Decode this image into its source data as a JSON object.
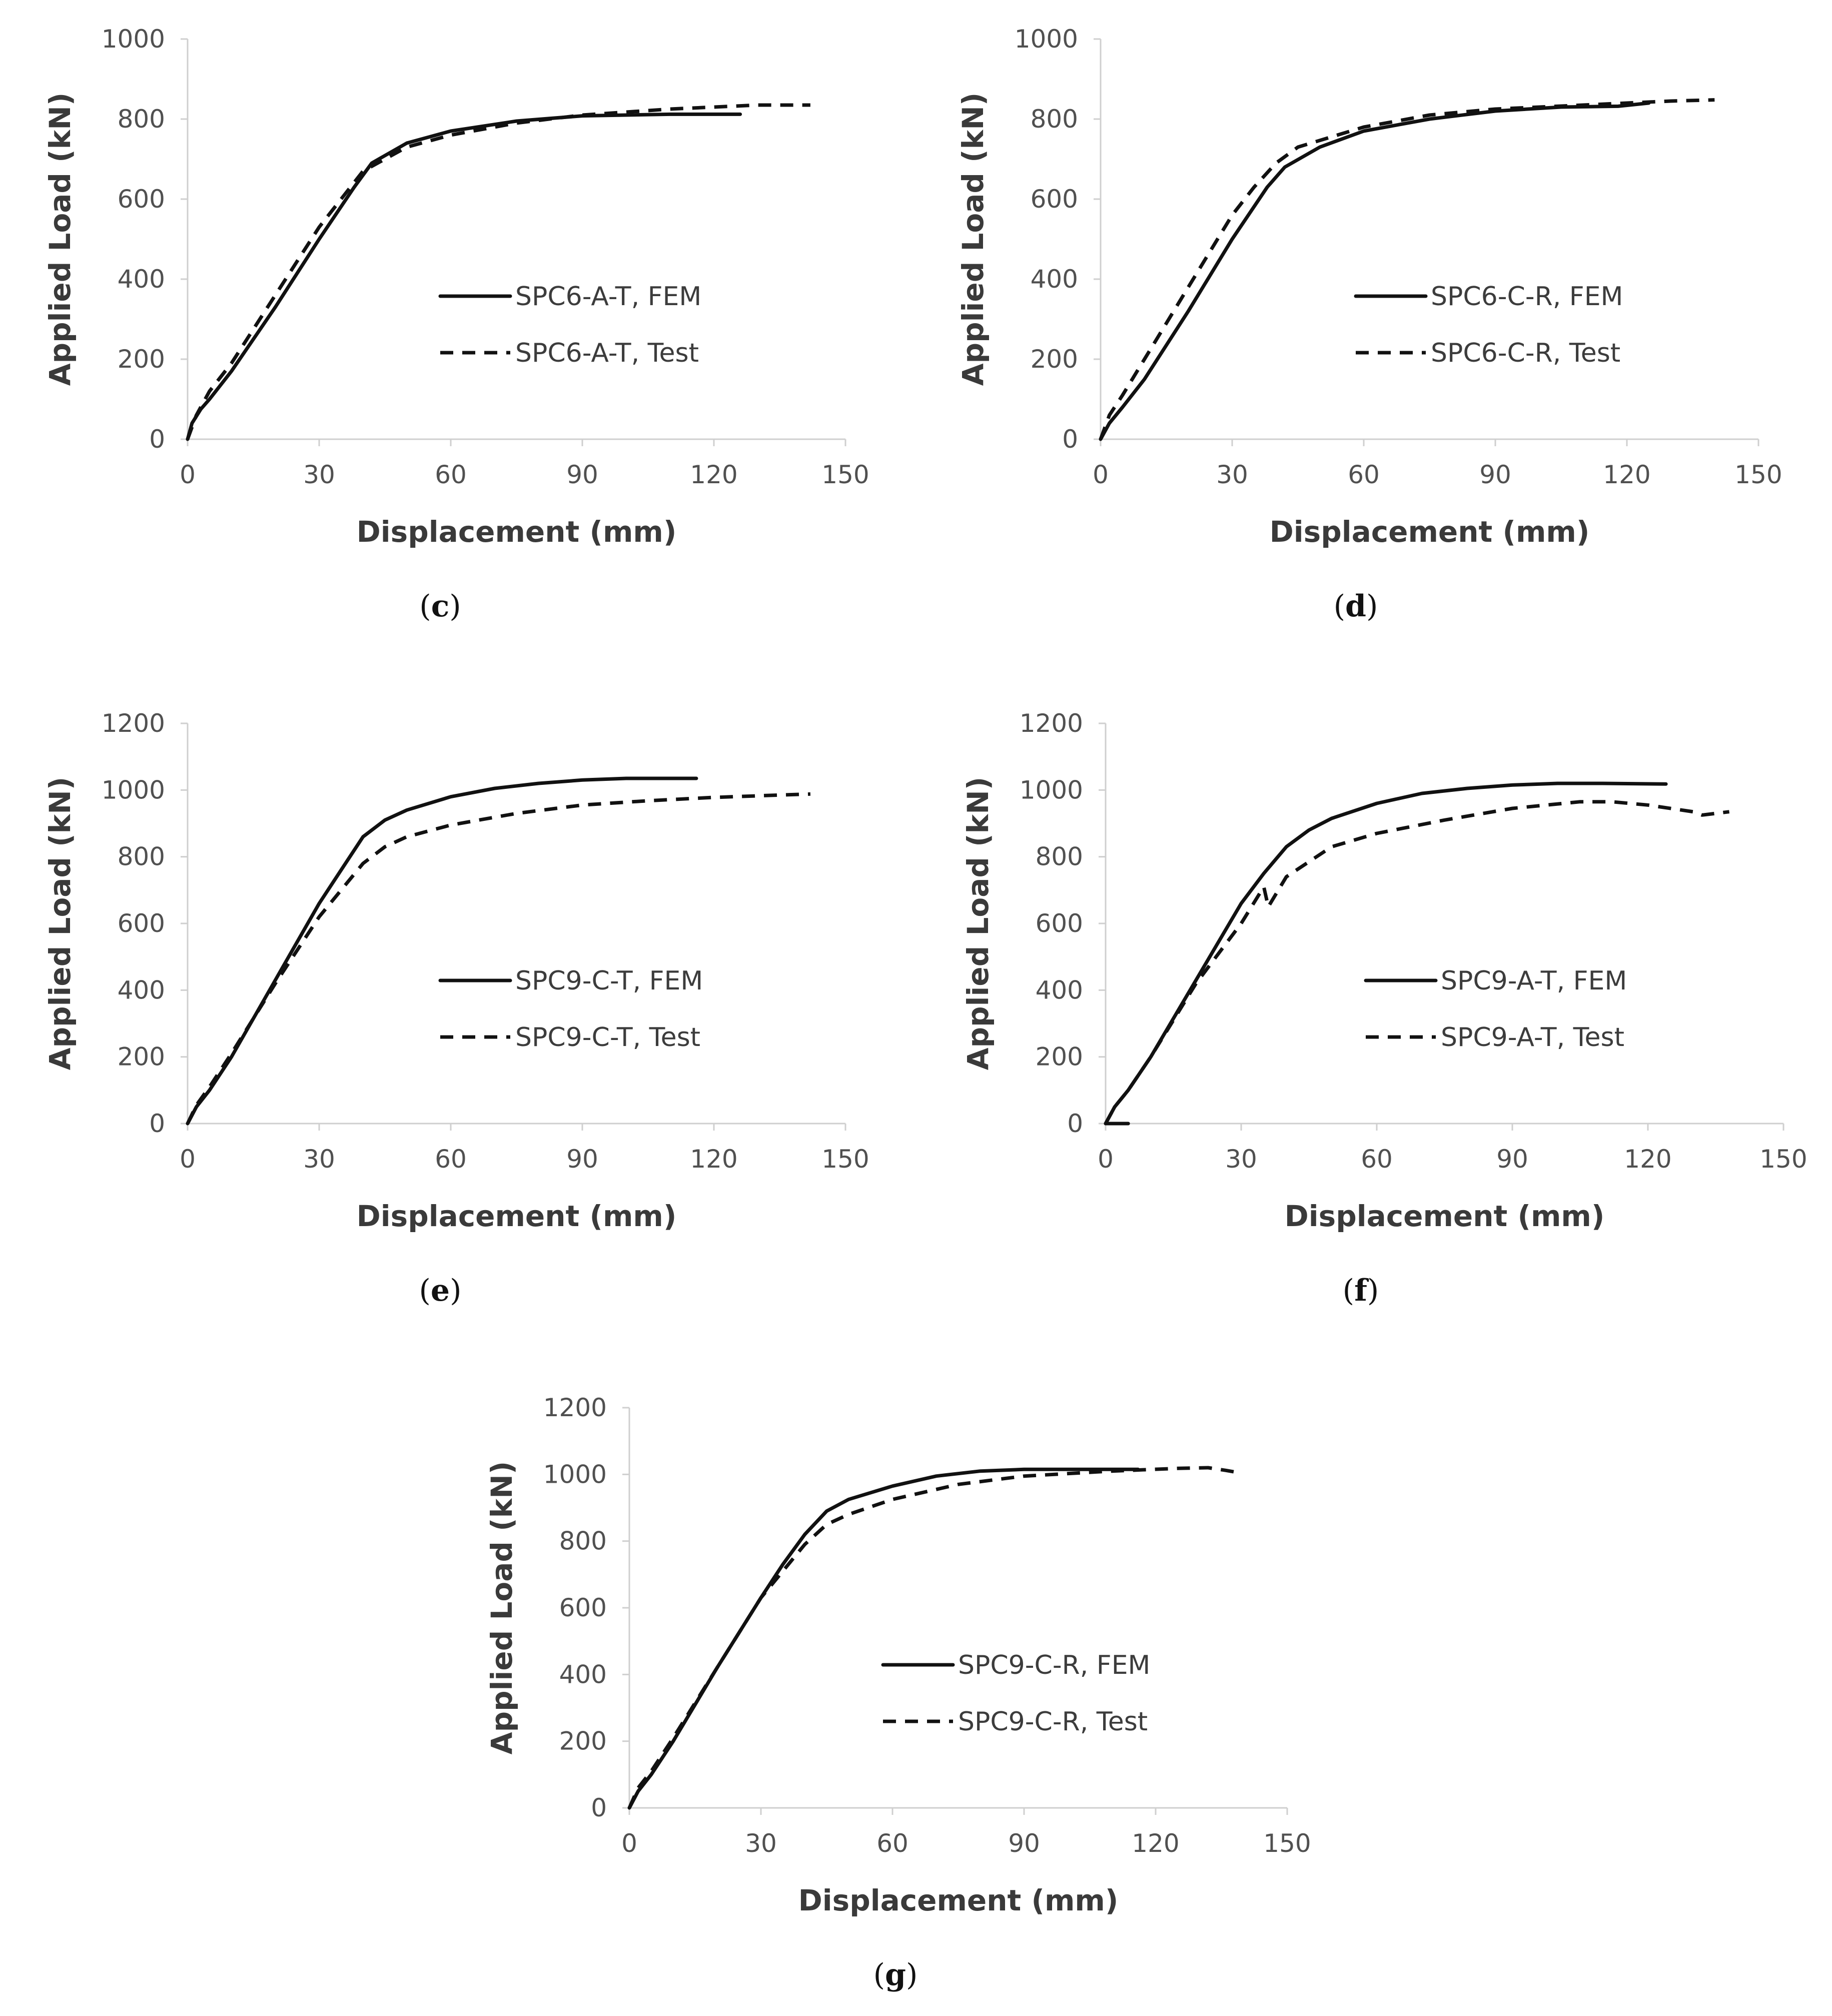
{
  "figure": {
    "panels": [
      {
        "id": "c",
        "caption_open": "(",
        "caption_letter": "c",
        "caption_close": ")"
      },
      {
        "id": "d",
        "caption_open": "(",
        "caption_letter": "d",
        "caption_close": ")"
      },
      {
        "id": "e",
        "caption_open": "(",
        "caption_letter": "e",
        "caption_close": ")"
      },
      {
        "id": "f",
        "caption_open": "(",
        "caption_letter": "f",
        "caption_close": ")"
      },
      {
        "id": "g",
        "caption_open": "(",
        "caption_letter": "g",
        "caption_close": ")"
      }
    ]
  },
  "chart_data": [
    {
      "panel": "c",
      "type": "line",
      "xlabel": "Displacement (mm)",
      "ylabel": "Applied Load (kN)",
      "xlim": [
        0,
        150
      ],
      "ylim": [
        0,
        1000
      ],
      "xticks": [
        "0",
        "30",
        "60",
        "90",
        "120",
        "150"
      ],
      "yticks": [
        "0",
        "200",
        "400",
        "600",
        "800",
        "1000"
      ],
      "legend_position": "center-right",
      "series": [
        {
          "name": "SPC6-A-T, FEM",
          "style": "solid",
          "x": [
            0,
            1,
            3,
            5,
            10,
            20,
            30,
            38,
            42,
            50,
            60,
            75,
            90,
            110,
            126
          ],
          "y": [
            0,
            40,
            75,
            100,
            170,
            330,
            500,
            630,
            690,
            740,
            770,
            795,
            808,
            812,
            812
          ]
        },
        {
          "name": "SPC6-A-T, Test",
          "style": "dashed",
          "x": [
            0,
            2,
            5,
            10,
            20,
            30,
            35,
            40,
            50,
            60,
            75,
            90,
            110,
            130,
            142
          ],
          "y": [
            0,
            60,
            120,
            190,
            360,
            530,
            600,
            670,
            730,
            760,
            790,
            810,
            825,
            835,
            835
          ]
        }
      ]
    },
    {
      "panel": "d",
      "type": "line",
      "xlabel": "Displacement (mm)",
      "ylabel": "Applied Load (kN)",
      "xlim": [
        0,
        150
      ],
      "ylim": [
        0,
        1000
      ],
      "xticks": [
        "0",
        "30",
        "60",
        "90",
        "120",
        "150"
      ],
      "yticks": [
        "0",
        "200",
        "400",
        "600",
        "800",
        "1000"
      ],
      "legend_position": "center-right",
      "series": [
        {
          "name": "SPC6-C-R, FEM",
          "style": "solid",
          "x": [
            0,
            2,
            5,
            10,
            20,
            30,
            38,
            42,
            50,
            60,
            75,
            90,
            105,
            118,
            125
          ],
          "y": [
            0,
            40,
            80,
            150,
            320,
            500,
            630,
            680,
            730,
            770,
            800,
            820,
            830,
            832,
            840
          ]
        },
        {
          "name": "SPC6-C-R, Test",
          "style": "dashed",
          "x": [
            0,
            2,
            5,
            10,
            20,
            30,
            35,
            40,
            45,
            60,
            75,
            90,
            110,
            130,
            140
          ],
          "y": [
            0,
            60,
            110,
            200,
            380,
            560,
            630,
            690,
            730,
            780,
            810,
            825,
            835,
            845,
            848
          ]
        }
      ]
    },
    {
      "panel": "e",
      "type": "line",
      "xlabel": "Displacement (mm)",
      "ylabel": "Applied Load (kN)",
      "xlim": [
        0,
        150
      ],
      "ylim": [
        0,
        1200
      ],
      "xticks": [
        "0",
        "30",
        "60",
        "90",
        "120",
        "150"
      ],
      "yticks": [
        "0",
        "200",
        "400",
        "600",
        "800",
        "1000",
        "1200"
      ],
      "legend_position": "center-right",
      "series": [
        {
          "name": "SPC9-C-T, FEM",
          "style": "solid",
          "x": [
            0,
            2,
            5,
            10,
            20,
            30,
            35,
            40,
            45,
            50,
            60,
            70,
            80,
            90,
            100,
            110,
            116
          ],
          "y": [
            0,
            50,
            100,
            200,
            430,
            660,
            760,
            860,
            910,
            940,
            980,
            1005,
            1020,
            1030,
            1035,
            1035,
            1035
          ]
        },
        {
          "name": "SPC9-C-T, Test",
          "style": "dashed",
          "x": [
            0,
            2,
            5,
            10,
            20,
            30,
            40,
            45,
            50,
            60,
            75,
            90,
            105,
            120,
            135,
            142
          ],
          "y": [
            0,
            55,
            110,
            210,
            420,
            620,
            780,
            830,
            860,
            895,
            930,
            955,
            968,
            978,
            985,
            988
          ]
        }
      ]
    },
    {
      "panel": "f",
      "type": "line",
      "xlabel": "Displacement (mm)",
      "ylabel": "Applied Load (kN)",
      "xlim": [
        0,
        150
      ],
      "ylim": [
        0,
        1200
      ],
      "xticks": [
        "0",
        "30",
        "60",
        "90",
        "120",
        "150"
      ],
      "yticks": [
        "0",
        "200",
        "400",
        "600",
        "800",
        "1000",
        "1200"
      ],
      "legend_position": "center-right",
      "series": [
        {
          "name": "SPC9-A-T, FEM",
          "style": "solid",
          "x": [
            0,
            2,
            5,
            10,
            20,
            30,
            35,
            40,
            45,
            50,
            60,
            70,
            80,
            90,
            100,
            110,
            124
          ],
          "y": [
            0,
            50,
            100,
            200,
            430,
            660,
            750,
            830,
            880,
            915,
            960,
            990,
            1005,
            1015,
            1020,
            1020,
            1018
          ]
        },
        {
          "name": "SPC9-A-T, Test",
          "style": "dashed",
          "x": [
            0,
            2,
            5,
            10,
            20,
            25,
            30,
            35,
            36,
            40,
            50,
            60,
            75,
            90,
            105,
            112,
            120,
            130,
            132,
            138
          ],
          "y": [
            0,
            50,
            100,
            200,
            420,
            510,
            600,
            710,
            650,
            740,
            830,
            870,
            910,
            945,
            965,
            965,
            955,
            935,
            925,
            935
          ]
        },
        {
          "name": "SPC9-A-T, FEM base segment",
          "style": "solid",
          "in_legend": false,
          "x": [
            0,
            5
          ],
          "y": [
            0,
            0
          ]
        }
      ]
    },
    {
      "panel": "g",
      "type": "line",
      "xlabel": "Displacement (mm)",
      "ylabel": "Applied Load (kN)",
      "xlim": [
        0,
        150
      ],
      "ylim": [
        0,
        1200
      ],
      "xticks": [
        "0",
        "30",
        "60",
        "90",
        "120",
        "150"
      ],
      "yticks": [
        "0",
        "200",
        "400",
        "600",
        "800",
        "1000",
        "1200"
      ],
      "legend_position": "center-right",
      "series": [
        {
          "name": "SPC9-C-R, FEM",
          "style": "solid",
          "x": [
            0,
            2,
            5,
            10,
            20,
            30,
            35,
            40,
            45,
            50,
            60,
            70,
            80,
            90,
            100,
            110,
            116
          ],
          "y": [
            0,
            50,
            100,
            200,
            420,
            630,
            730,
            820,
            890,
            925,
            965,
            995,
            1010,
            1015,
            1015,
            1015,
            1015
          ]
        },
        {
          "name": "SPC9-C-R, Test",
          "style": "dashed",
          "x": [
            0,
            2,
            5,
            10,
            20,
            30,
            40,
            45,
            50,
            60,
            75,
            90,
            110,
            125,
            132,
            136,
            139
          ],
          "y": [
            0,
            60,
            110,
            210,
            420,
            630,
            790,
            850,
            880,
            925,
            970,
            995,
            1010,
            1018,
            1020,
            1012,
            1005
          ]
        }
      ]
    }
  ]
}
